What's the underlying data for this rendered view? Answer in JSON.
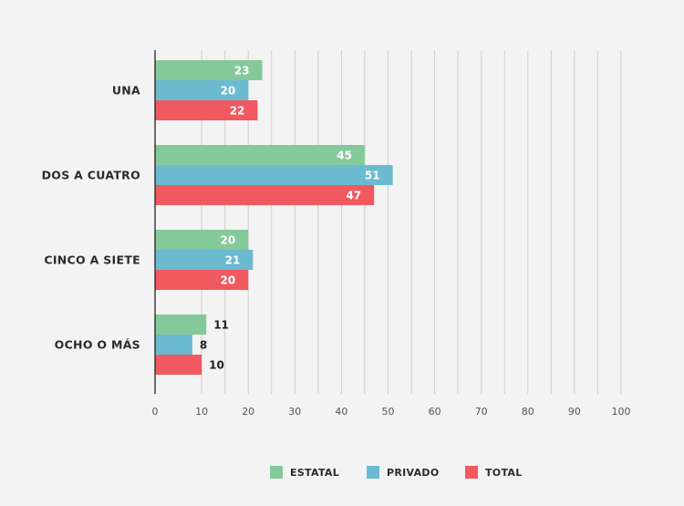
{
  "chart_data": {
    "type": "bar",
    "orientation": "horizontal",
    "categories": [
      "UNA",
      "DOS A CUATRO",
      "CINCO A SIETE",
      "OCHO O MÁS"
    ],
    "series": [
      {
        "name": "ESTATAL",
        "color": "#84c99a",
        "values": [
          23,
          45,
          20,
          11
        ]
      },
      {
        "name": "PRIVADO",
        "color": "#6bbad0",
        "values": [
          20,
          51,
          21,
          8
        ]
      },
      {
        "name": "TOTAL",
        "color": "#f0595f",
        "values": [
          22,
          47,
          20,
          10
        ]
      }
    ],
    "x_ticks": [
      "0",
      "10",
      "20",
      "30",
      "40",
      "50",
      "60",
      "70",
      "80",
      "90",
      "100"
    ],
    "xlim": [
      0,
      100
    ],
    "grid": "vertical",
    "legend_position": "bottom"
  }
}
